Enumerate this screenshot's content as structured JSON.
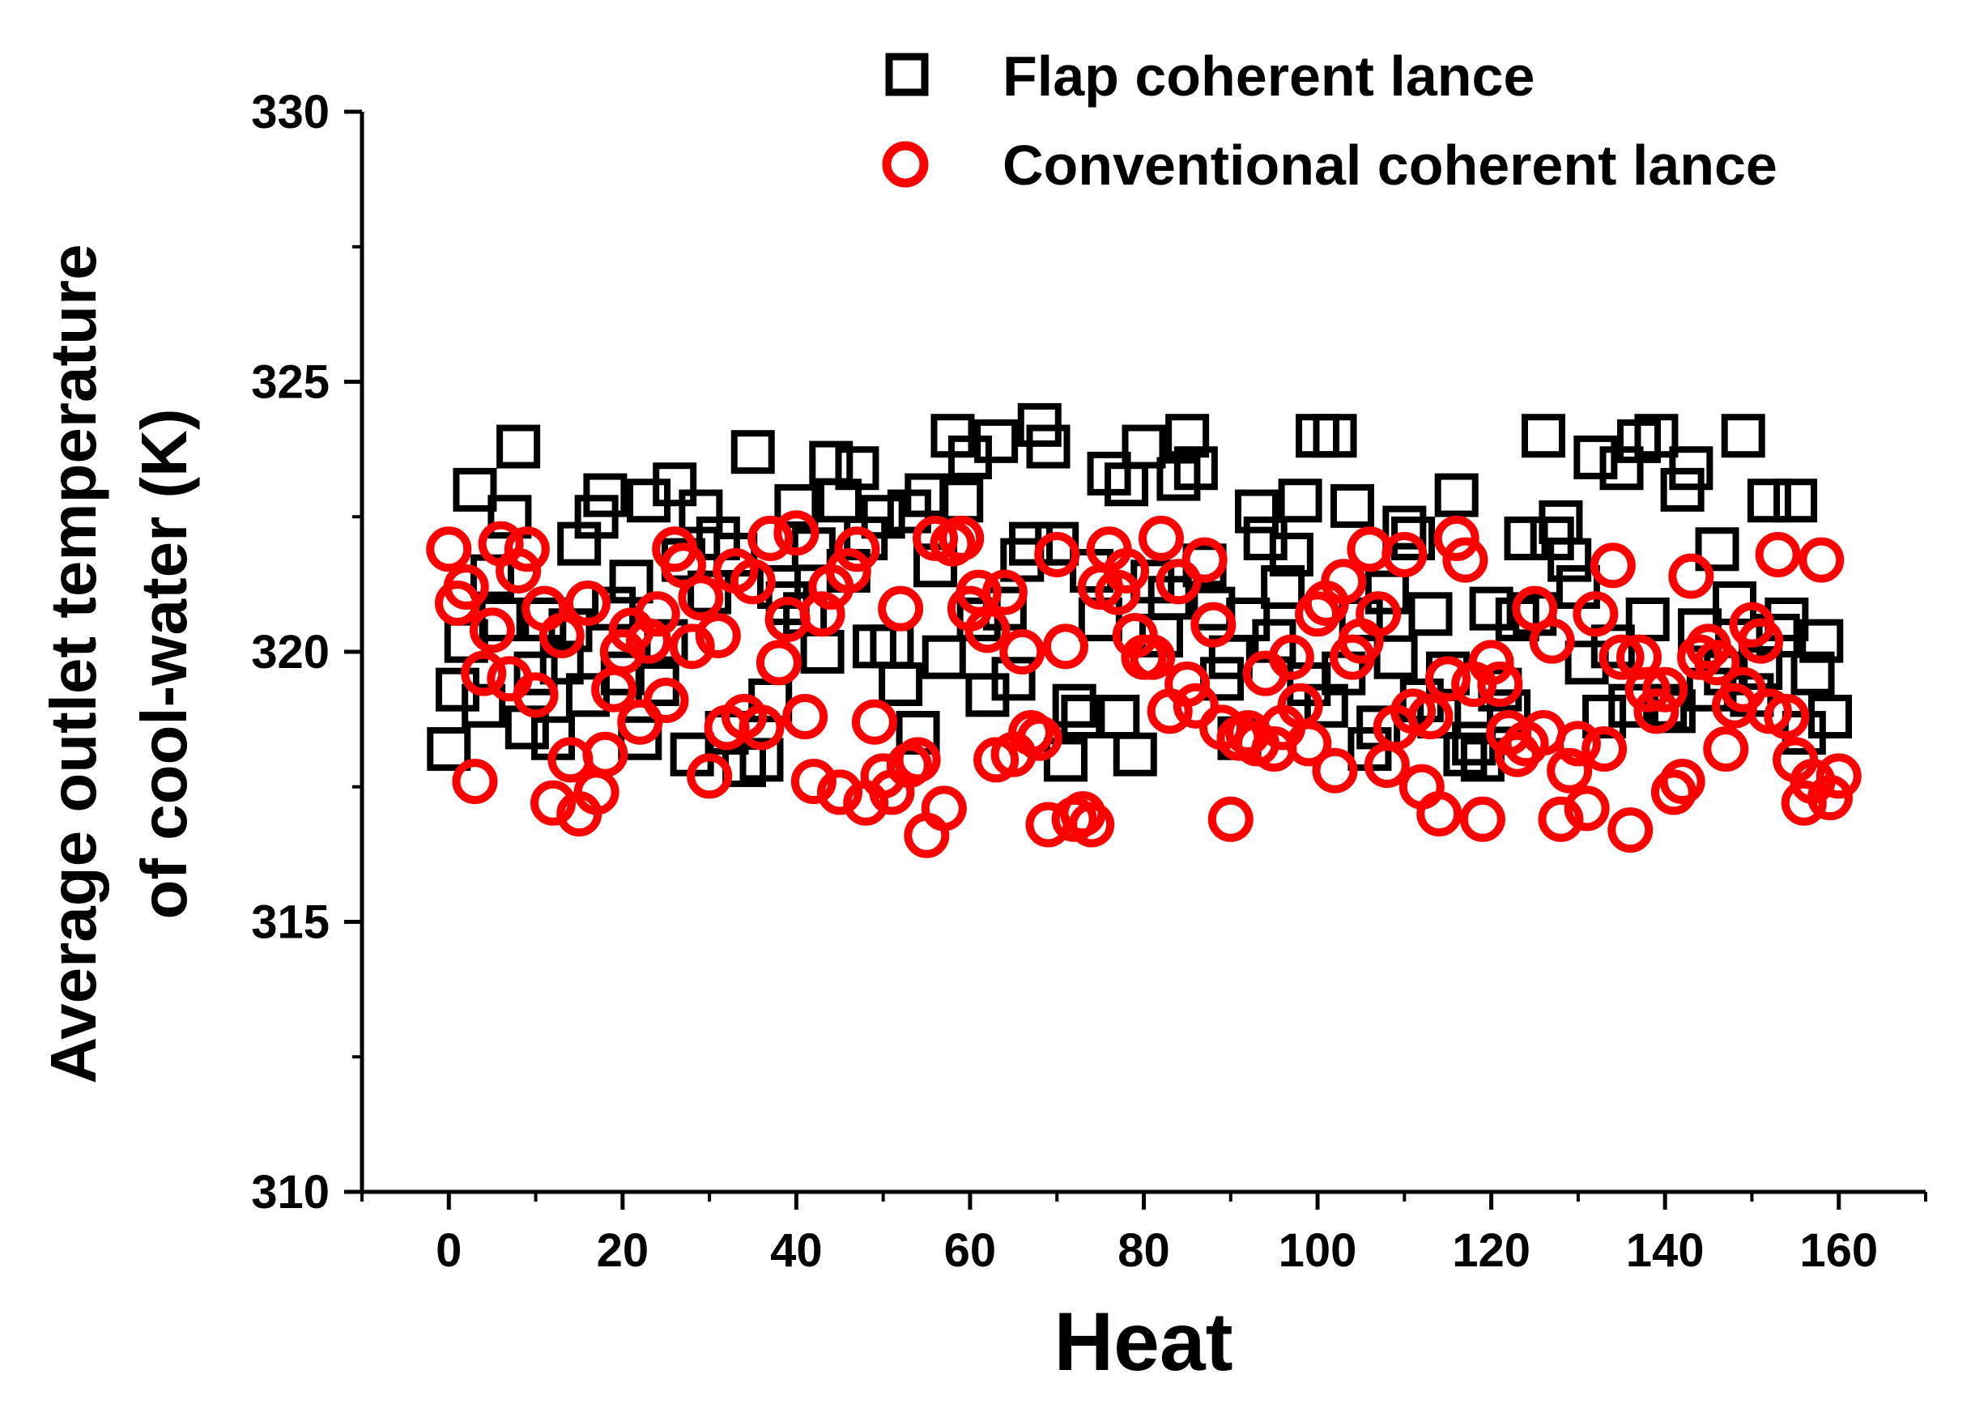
{
  "chart_data": {
    "type": "scatter",
    "title": "",
    "xlabel": "Heat",
    "ylabel_lines": [
      "Average outlet temperature",
      "of cool-water (K)"
    ],
    "xlim": [
      -10,
      170
    ],
    "ylim": [
      310,
      330
    ],
    "x_ticks": [
      0,
      20,
      40,
      60,
      80,
      100,
      120,
      140,
      160
    ],
    "y_ticks": [
      310,
      315,
      320,
      325,
      330
    ],
    "grid": false,
    "legend_position": "top-right",
    "series": [
      {
        "name": "Flap coherent lance",
        "marker": "open-square",
        "color": "#000000",
        "points": [
          [
            0,
            318.2
          ],
          [
            1,
            319.3
          ],
          [
            2,
            320.2
          ],
          [
            3,
            323.0
          ],
          [
            4,
            319.0
          ],
          [
            5,
            321.4
          ],
          [
            6,
            320.6
          ],
          [
            7,
            322.5
          ],
          [
            8,
            323.8
          ],
          [
            9,
            318.6
          ],
          [
            10,
            319.6
          ],
          [
            11,
            320.6
          ],
          [
            12,
            318.4
          ],
          [
            13,
            319.8
          ],
          [
            14,
            320.4
          ],
          [
            15,
            322.0
          ],
          [
            16,
            319.2
          ],
          [
            17,
            322.5
          ],
          [
            18,
            322.9
          ],
          [
            19,
            320.8
          ],
          [
            20,
            319.6
          ],
          [
            21,
            321.3
          ],
          [
            22,
            318.4
          ],
          [
            23,
            322.8
          ],
          [
            24,
            319.4
          ],
          [
            25,
            320.2
          ],
          [
            26,
            323.1
          ],
          [
            27,
            321.7
          ],
          [
            28,
            318.1
          ],
          [
            29,
            322.6
          ],
          [
            30,
            321.1
          ],
          [
            31,
            322.1
          ],
          [
            32,
            318.5
          ],
          [
            33,
            321.8
          ],
          [
            34,
            317.9
          ],
          [
            35,
            323.7
          ],
          [
            36,
            318.0
          ],
          [
            37,
            319.1
          ],
          [
            38,
            321.2
          ],
          [
            39,
            320.9
          ],
          [
            40,
            322.7
          ],
          [
            41,
            320.7
          ],
          [
            42,
            321.9
          ],
          [
            43,
            320.0
          ],
          [
            44,
            323.5
          ],
          [
            45,
            322.8
          ],
          [
            46,
            321.5
          ],
          [
            47,
            323.4
          ],
          [
            48,
            322.1
          ],
          [
            49,
            320.1
          ],
          [
            50,
            322.5
          ],
          [
            51,
            320.1
          ],
          [
            52,
            319.4
          ],
          [
            53,
            322.6
          ],
          [
            54,
            318.5
          ],
          [
            55,
            322.9
          ],
          [
            56,
            321.6
          ],
          [
            57,
            319.9
          ],
          [
            58,
            324.0
          ],
          [
            59,
            322.8
          ],
          [
            60,
            323.6
          ],
          [
            61,
            320.6
          ],
          [
            62,
            319.2
          ],
          [
            63,
            323.9
          ],
          [
            64,
            320.8
          ],
          [
            65,
            319.5
          ],
          [
            66,
            321.7
          ],
          [
            67,
            322.0
          ],
          [
            68,
            324.2
          ],
          [
            69,
            323.8
          ],
          [
            70,
            322.0
          ],
          [
            71,
            318.0
          ],
          [
            72,
            319.0
          ],
          [
            73,
            318.8
          ],
          [
            74,
            321.5
          ],
          [
            75,
            320.6
          ],
          [
            76,
            323.3
          ],
          [
            77,
            318.8
          ],
          [
            78,
            323.1
          ],
          [
            79,
            318.1
          ],
          [
            80,
            323.8
          ],
          [
            81,
            321.3
          ],
          [
            82,
            320.3
          ],
          [
            83,
            321.0
          ],
          [
            84,
            323.2
          ],
          [
            85,
            324.0
          ],
          [
            86,
            323.4
          ],
          [
            87,
            321.6
          ],
          [
            88,
            320.8
          ],
          [
            89,
            319.5
          ],
          [
            90,
            319.9
          ],
          [
            91,
            318.4
          ],
          [
            92,
            320.6
          ],
          [
            93,
            322.6
          ],
          [
            94,
            322.1
          ],
          [
            95,
            320.2
          ],
          [
            96,
            321.2
          ],
          [
            97,
            321.8
          ],
          [
            98,
            322.8
          ],
          [
            99,
            319.4
          ],
          [
            100,
            324.0
          ],
          [
            101,
            319.0
          ],
          [
            102,
            324.0
          ],
          [
            103,
            319.6
          ],
          [
            104,
            322.7
          ],
          [
            105,
            320.6
          ],
          [
            106,
            318.2
          ],
          [
            107,
            318.6
          ],
          [
            108,
            321.1
          ],
          [
            109,
            319.9
          ],
          [
            110,
            322.3
          ],
          [
            111,
            322.1
          ],
          [
            112,
            319.1
          ],
          [
            113,
            320.7
          ],
          [
            114,
            318.8
          ],
          [
            115,
            319.6
          ],
          [
            116,
            322.9
          ],
          [
            117,
            318.1
          ],
          [
            118,
            318.3
          ],
          [
            119,
            318.0
          ],
          [
            120,
            320.8
          ],
          [
            121,
            319.3
          ],
          [
            122,
            318.9
          ],
          [
            123,
            320.6
          ],
          [
            124,
            322.1
          ],
          [
            125,
            320.7
          ],
          [
            126,
            324.0
          ],
          [
            127,
            322.1
          ],
          [
            128,
            322.4
          ],
          [
            129,
            321.7
          ],
          [
            130,
            321.2
          ],
          [
            131,
            319.8
          ],
          [
            132,
            323.6
          ],
          [
            133,
            318.8
          ],
          [
            134,
            320.1
          ],
          [
            135,
            323.4
          ],
          [
            136,
            319.0
          ],
          [
            137,
            323.9
          ],
          [
            138,
            320.6
          ],
          [
            139,
            324.0
          ],
          [
            140,
            319.0
          ],
          [
            141,
            318.9
          ],
          [
            142,
            323.0
          ],
          [
            143,
            323.4
          ],
          [
            144,
            320.4
          ],
          [
            145,
            319.3
          ],
          [
            146,
            321.9
          ],
          [
            147,
            319.6
          ],
          [
            148,
            320.9
          ],
          [
            149,
            324.0
          ],
          [
            150,
            319.2
          ],
          [
            151,
            319.7
          ],
          [
            152,
            322.8
          ],
          [
            153,
            320.3
          ],
          [
            154,
            320.6
          ],
          [
            155,
            322.8
          ],
          [
            156,
            318.5
          ],
          [
            157,
            319.6
          ],
          [
            158,
            320.2
          ],
          [
            159,
            318.8
          ]
        ]
      },
      {
        "name": "Conventional coherent lance",
        "marker": "open-circle",
        "color": "#ff0000",
        "points": [
          [
            0,
            321.9
          ],
          [
            1,
            320.9
          ],
          [
            2,
            321.2
          ],
          [
            3,
            317.6
          ],
          [
            4,
            319.6
          ],
          [
            5,
            320.4
          ],
          [
            6,
            322.0
          ],
          [
            7,
            319.5
          ],
          [
            8,
            321.5
          ],
          [
            9,
            321.9
          ],
          [
            10,
            319.2
          ],
          [
            11,
            320.8
          ],
          [
            12,
            317.2
          ],
          [
            13,
            320.3
          ],
          [
            14,
            318.0
          ],
          [
            15,
            317.0
          ],
          [
            16,
            320.9
          ],
          [
            17,
            317.4
          ],
          [
            18,
            318.1
          ],
          [
            19,
            319.3
          ],
          [
            20,
            320.0
          ],
          [
            21,
            320.4
          ],
          [
            22,
            318.7
          ],
          [
            23,
            320.2
          ],
          [
            24,
            320.7
          ],
          [
            25,
            319.1
          ],
          [
            26,
            321.9
          ],
          [
            27,
            321.6
          ],
          [
            28,
            320.1
          ],
          [
            29,
            321.0
          ],
          [
            30,
            317.7
          ],
          [
            31,
            320.3
          ],
          [
            32,
            318.6
          ],
          [
            33,
            321.5
          ],
          [
            34,
            318.8
          ],
          [
            35,
            321.3
          ],
          [
            36,
            318.6
          ],
          [
            37,
            322.1
          ],
          [
            38,
            319.8
          ],
          [
            39,
            320.6
          ],
          [
            40,
            322.2
          ],
          [
            41,
            318.8
          ],
          [
            42,
            317.6
          ],
          [
            43,
            320.7
          ],
          [
            44,
            321.2
          ],
          [
            45,
            317.4
          ],
          [
            46,
            321.5
          ],
          [
            47,
            321.9
          ],
          [
            48,
            317.2
          ],
          [
            49,
            318.7
          ],
          [
            50,
            317.7
          ],
          [
            51,
            317.4
          ],
          [
            52,
            320.8
          ],
          [
            53,
            317.9
          ],
          [
            54,
            318.0
          ],
          [
            55,
            316.6
          ],
          [
            56,
            322.1
          ],
          [
            57,
            317.1
          ],
          [
            58,
            322.0
          ],
          [
            59,
            322.1
          ],
          [
            60,
            320.8
          ],
          [
            61,
            321.1
          ],
          [
            62,
            320.4
          ],
          [
            63,
            318.0
          ],
          [
            64,
            321.1
          ],
          [
            65,
            318.1
          ],
          [
            66,
            320.0
          ],
          [
            67,
            318.5
          ],
          [
            68,
            318.4
          ],
          [
            69,
            316.8
          ],
          [
            70,
            321.8
          ],
          [
            71,
            320.1
          ],
          [
            72,
            316.9
          ],
          [
            73,
            317.0
          ],
          [
            74,
            316.8
          ],
          [
            75,
            321.2
          ],
          [
            76,
            321.9
          ],
          [
            77,
            321.1
          ],
          [
            78,
            321.5
          ],
          [
            79,
            320.3
          ],
          [
            80,
            319.9
          ],
          [
            81,
            319.9
          ],
          [
            82,
            322.1
          ],
          [
            83,
            318.9
          ],
          [
            84,
            321.3
          ],
          [
            85,
            319.4
          ],
          [
            86,
            319.0
          ],
          [
            87,
            321.7
          ],
          [
            88,
            320.5
          ],
          [
            89,
            318.6
          ],
          [
            90,
            316.9
          ],
          [
            91,
            318.4
          ],
          [
            92,
            318.5
          ],
          [
            93,
            318.3
          ],
          [
            94,
            319.6
          ],
          [
            95,
            318.2
          ],
          [
            96,
            318.6
          ],
          [
            97,
            319.9
          ],
          [
            98,
            319.0
          ],
          [
            99,
            318.3
          ],
          [
            100,
            320.7
          ],
          [
            101,
            320.9
          ],
          [
            102,
            317.8
          ],
          [
            103,
            321.3
          ],
          [
            104,
            319.9
          ],
          [
            105,
            320.2
          ],
          [
            106,
            321.9
          ],
          [
            107,
            320.7
          ],
          [
            108,
            317.9
          ],
          [
            109,
            318.6
          ],
          [
            110,
            321.8
          ],
          [
            111,
            318.9
          ],
          [
            112,
            317.5
          ],
          [
            113,
            318.8
          ],
          [
            114,
            317.0
          ],
          [
            115,
            319.5
          ],
          [
            116,
            322.1
          ],
          [
            117,
            321.7
          ],
          [
            118,
            319.4
          ],
          [
            119,
            316.9
          ],
          [
            120,
            319.8
          ],
          [
            121,
            319.4
          ],
          [
            122,
            318.5
          ],
          [
            123,
            318.1
          ],
          [
            124,
            318.3
          ],
          [
            125,
            320.8
          ],
          [
            126,
            318.5
          ],
          [
            127,
            320.2
          ],
          [
            128,
            316.9
          ],
          [
            129,
            317.8
          ],
          [
            130,
            318.3
          ],
          [
            131,
            317.1
          ],
          [
            132,
            320.7
          ],
          [
            133,
            318.2
          ],
          [
            134,
            321.6
          ],
          [
            135,
            319.9
          ],
          [
            136,
            316.7
          ],
          [
            137,
            319.9
          ],
          [
            138,
            319.3
          ],
          [
            139,
            318.9
          ],
          [
            140,
            319.3
          ],
          [
            141,
            317.4
          ],
          [
            142,
            317.6
          ],
          [
            143,
            321.4
          ],
          [
            144,
            319.9
          ],
          [
            145,
            320.1
          ],
          [
            146,
            319.8
          ],
          [
            147,
            318.2
          ],
          [
            148,
            319.0
          ],
          [
            149,
            319.3
          ],
          [
            150,
            320.5
          ],
          [
            151,
            320.2
          ],
          [
            152,
            318.9
          ],
          [
            153,
            321.8
          ],
          [
            154,
            318.8
          ],
          [
            155,
            318.0
          ],
          [
            156,
            317.2
          ],
          [
            157,
            317.6
          ],
          [
            158,
            321.7
          ],
          [
            159,
            317.3
          ],
          [
            160,
            317.7
          ]
        ]
      }
    ]
  }
}
